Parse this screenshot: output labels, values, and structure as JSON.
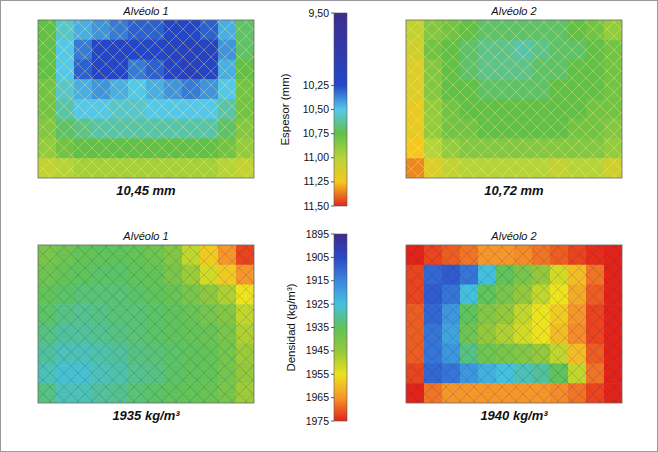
{
  "chart_data": [
    {
      "type": "heatmap",
      "colorbar": {
        "label": "Espesor (mm)",
        "range": [
          9.5,
          11.5
        ],
        "ticks": [
          {
            "value": 9.5,
            "label": "9,50"
          },
          {
            "value": 10.25,
            "label": "10,25"
          },
          {
            "value": 10.5,
            "label": "10,50"
          },
          {
            "value": 10.75,
            "label": "10,75"
          },
          {
            "value": 11.0,
            "label": "11,00"
          },
          {
            "value": 11.25,
            "label": "11,25"
          },
          {
            "value": 11.5,
            "label": "11,50"
          }
        ]
      },
      "panels": [
        {
          "title": "Alvéolo 1",
          "annotation": "10,45 mm",
          "cells": [
            [
              10.75,
              10.55,
              10.45,
              10.4,
              10.35,
              10.3,
              10.3,
              10.25,
              10.25,
              10.3,
              10.45,
              10.7
            ],
            [
              10.75,
              10.5,
              10.35,
              10.25,
              10.2,
              10.25,
              10.25,
              10.15,
              10.1,
              10.15,
              10.4,
              10.7
            ],
            [
              10.75,
              10.5,
              10.3,
              10.2,
              10.25,
              10.35,
              10.3,
              10.2,
              10.1,
              10.2,
              10.45,
              10.75
            ],
            [
              10.8,
              10.55,
              10.45,
              10.4,
              10.45,
              10.5,
              10.45,
              10.4,
              10.35,
              10.4,
              10.5,
              10.8
            ],
            [
              10.8,
              10.6,
              10.5,
              10.5,
              10.55,
              10.55,
              10.5,
              10.5,
              10.5,
              10.5,
              10.6,
              10.8
            ],
            [
              10.85,
              10.7,
              10.65,
              10.6,
              10.6,
              10.6,
              10.6,
              10.6,
              10.6,
              10.6,
              10.7,
              10.85
            ],
            [
              10.9,
              10.8,
              10.75,
              10.75,
              10.75,
              10.75,
              10.75,
              10.75,
              10.75,
              10.75,
              10.8,
              10.9
            ],
            [
              11.05,
              11.0,
              10.95,
              10.95,
              10.95,
              10.95,
              10.95,
              10.95,
              10.95,
              10.95,
              11.0,
              11.05
            ]
          ]
        },
        {
          "title": "Alvéolo 2",
          "annotation": "10,72 mm",
          "cells": [
            [
              11.05,
              10.85,
              10.8,
              10.75,
              10.7,
              10.7,
              10.7,
              10.7,
              10.7,
              10.75,
              10.8,
              10.9
            ],
            [
              11.1,
              10.8,
              10.75,
              10.7,
              10.65,
              10.65,
              10.6,
              10.65,
              10.7,
              10.7,
              10.75,
              10.8
            ],
            [
              11.15,
              10.85,
              10.75,
              10.7,
              10.65,
              10.65,
              10.65,
              10.7,
              10.7,
              10.75,
              10.75,
              10.8
            ],
            [
              11.15,
              10.85,
              10.75,
              10.75,
              10.7,
              10.7,
              10.7,
              10.7,
              10.75,
              10.75,
              10.75,
              10.8
            ],
            [
              11.2,
              10.9,
              10.8,
              10.75,
              10.75,
              10.75,
              10.75,
              10.75,
              10.75,
              10.75,
              10.8,
              10.8
            ],
            [
              11.2,
              10.9,
              10.8,
              10.8,
              10.75,
              10.75,
              10.75,
              10.75,
              10.75,
              10.8,
              10.8,
              10.85
            ],
            [
              11.25,
              11.0,
              10.9,
              10.85,
              10.85,
              10.85,
              10.85,
              10.85,
              10.85,
              10.85,
              10.85,
              10.9
            ],
            [
              11.35,
              11.15,
              11.05,
              11.0,
              11.0,
              11.0,
              11.0,
              11.0,
              11.05,
              11.0,
              11.0,
              11.1
            ]
          ]
        }
      ]
    },
    {
      "type": "heatmap",
      "colorbar": {
        "label": "Densidad (kg/m³)",
        "range": [
          1895,
          1975
        ],
        "ticks": [
          1895,
          1905,
          1915,
          1925,
          1935,
          1945,
          1955,
          1965,
          1975
        ]
      },
      "panels": [
        {
          "title": "Alvéolo 1",
          "annotation": "1935 kg/m³",
          "cells": [
            [
              1940,
              1938,
              1936,
              1935,
              1935,
              1936,
              1938,
              1942,
              1950,
              1958,
              1965,
              1972
            ],
            [
              1938,
              1936,
              1935,
              1934,
              1934,
              1935,
              1936,
              1940,
              1946,
              1952,
              1958,
              1965
            ],
            [
              1936,
              1934,
              1933,
              1933,
              1933,
              1934,
              1935,
              1937,
              1940,
              1944,
              1948,
              1955
            ],
            [
              1934,
              1932,
              1931,
              1932,
              1933,
              1933,
              1934,
              1935,
              1937,
              1939,
              1942,
              1950
            ],
            [
              1932,
              1930,
              1930,
              1931,
              1932,
              1933,
              1934,
              1935,
              1936,
              1937,
              1940,
              1948
            ],
            [
              1930,
              1928,
              1928,
              1929,
              1930,
              1932,
              1933,
              1934,
              1935,
              1936,
              1939,
              1946
            ],
            [
              1928,
              1926,
              1926,
              1928,
              1929,
              1931,
              1932,
              1934,
              1935,
              1936,
              1939,
              1945
            ],
            [
              1932,
              1928,
              1928,
              1930,
              1931,
              1933,
              1934,
              1935,
              1936,
              1937,
              1940,
              1946
            ]
          ]
        },
        {
          "title": "Alvéolo 2",
          "annotation": "1940 kg/m³",
          "cells": [
            [
              1975,
              1972,
              1970,
              1968,
              1965,
              1965,
              1966,
              1968,
              1970,
              1972,
              1974,
              1975
            ],
            [
              1972,
              1910,
              1908,
              1912,
              1925,
              1935,
              1940,
              1945,
              1952,
              1960,
              1968,
              1975
            ],
            [
              1972,
              1908,
              1912,
              1925,
              1935,
              1940,
              1945,
              1950,
              1955,
              1962,
              1970,
              1975
            ],
            [
              1970,
              1910,
              1918,
              1935,
              1942,
              1945,
              1950,
              1955,
              1958,
              1965,
              1972,
              1975
            ],
            [
              1970,
              1912,
              1920,
              1938,
              1945,
              1948,
              1952,
              1955,
              1960,
              1966,
              1972,
              1975
            ],
            [
              1970,
              1912,
              1918,
              1932,
              1938,
              1940,
              1942,
              1945,
              1950,
              1960,
              1970,
              1975
            ],
            [
              1972,
              1910,
              1912,
              1918,
              1922,
              1925,
              1928,
              1930,
              1935,
              1950,
              1968,
              1975
            ],
            [
              1975,
              1968,
              1965,
              1965,
              1965,
              1965,
              1965,
              1965,
              1966,
              1968,
              1972,
              1975
            ]
          ]
        }
      ]
    }
  ]
}
